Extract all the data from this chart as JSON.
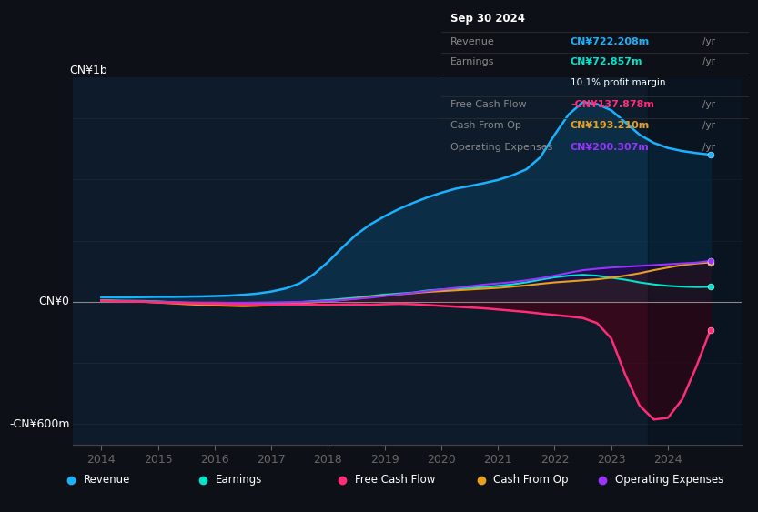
{
  "bg_color": "#0d1117",
  "plot_bg_color": "#0d1b2a",
  "ylim_min": -700,
  "ylim_max": 1100,
  "xlim_min": 2013.5,
  "xlim_max": 2025.3,
  "y_label_top": "CN¥1b",
  "y_label_bottom": "-CN¥600m",
  "y_label_zero": "CN¥0",
  "revenue_color": "#1ab2ff",
  "earnings_color": "#00e5cc",
  "free_cash_flow_color": "#ff2d78",
  "cash_from_op_color": "#e8a020",
  "operating_expenses_color": "#9933ff",
  "revenue_fill_color": "#0a3a5a",
  "earnings_fill_color": "#003830",
  "free_cash_flow_fill_color": "#4a0015",
  "cash_from_op_fill_color": "#3a2800",
  "operating_expenses_fill_color": "#2a0055",
  "info_box_bg": "#000000",
  "info_box_border": "#333333",
  "info_box": {
    "date": "Sep 30 2024",
    "revenue_label": "Revenue",
    "revenue_value": "CN¥722.208m",
    "revenue_color": "#1ab2ff",
    "earnings_label": "Earnings",
    "earnings_value": "CN¥72.857m",
    "earnings_color": "#00e5cc",
    "margin_text": "10.1% profit margin",
    "fcf_label": "Free Cash Flow",
    "fcf_value": "-CN¥137.878m",
    "fcf_color": "#ff2d78",
    "cashop_label": "Cash From Op",
    "cashop_value": "CN¥193.210m",
    "cashop_color": "#e8a020",
    "opex_label": "Operating Expenses",
    "opex_value": "CN¥200.307m",
    "opex_color": "#9933ff"
  },
  "legend_items": [
    {
      "label": "Revenue",
      "color": "#1ab2ff"
    },
    {
      "label": "Earnings",
      "color": "#00e5cc"
    },
    {
      "label": "Free Cash Flow",
      "color": "#ff2d78"
    },
    {
      "label": "Cash From Op",
      "color": "#e8a020"
    },
    {
      "label": "Operating Expenses",
      "color": "#9933ff"
    }
  ],
  "xticks": [
    2014,
    2015,
    2016,
    2017,
    2018,
    2019,
    2020,
    2021,
    2022,
    2023,
    2024
  ]
}
